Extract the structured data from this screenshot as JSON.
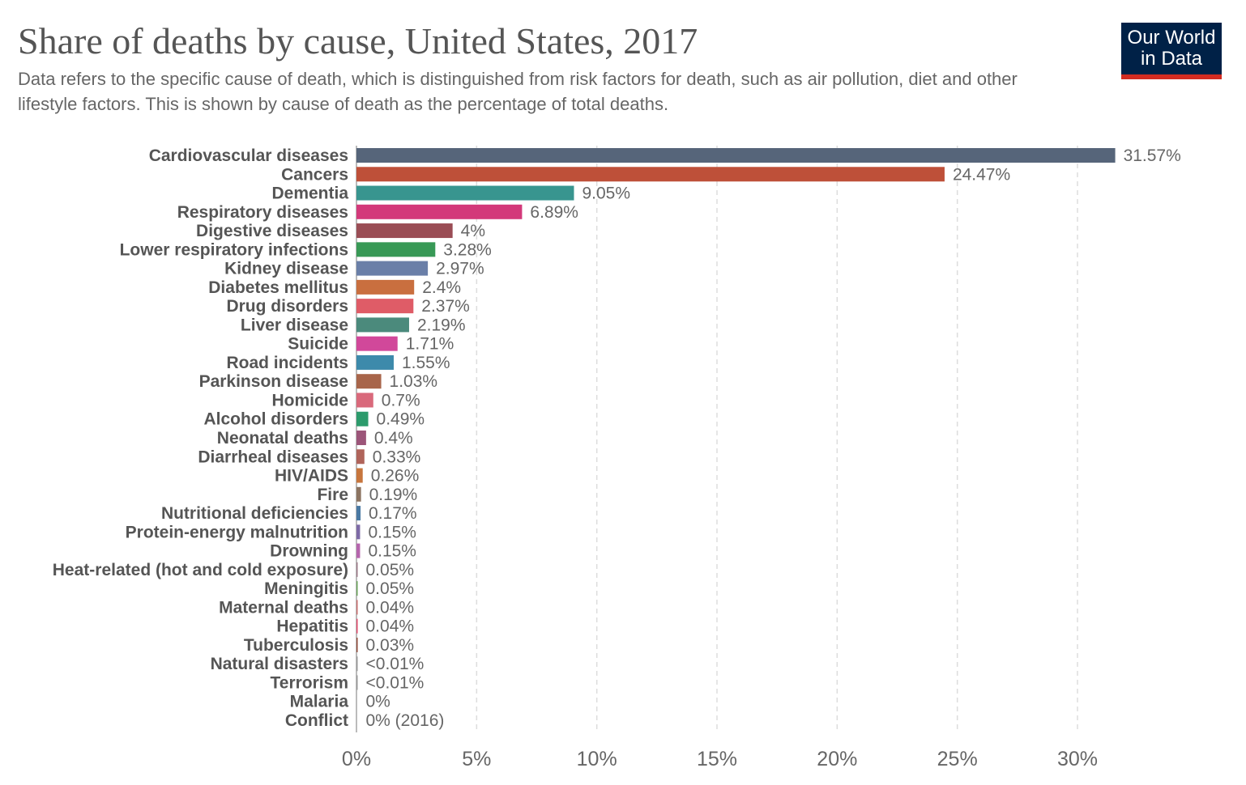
{
  "logo": {
    "text": "Our World in Data",
    "line1": "Our World",
    "line2": "in Data",
    "bg_color": "#002147",
    "accent_color": "#d42b21"
  },
  "chart_data": {
    "type": "bar",
    "orientation": "horizontal",
    "title": "Share of deaths by cause, United States, 2017",
    "subtitle": "Data refers to the specific cause of death, which is distinguished from risk factors for death, such as air pollution, diet and other lifestyle factors. This is shown by cause of death as the percentage of total deaths.",
    "xlim": [
      0,
      30
    ],
    "x_ticks": [
      "0%",
      "5%",
      "10%",
      "15%",
      "20%",
      "25%",
      "30%"
    ],
    "x_tick_values": [
      0,
      5,
      10,
      15,
      20,
      25,
      30
    ],
    "grid": "vertical dashed",
    "categories": [
      "Cardiovascular diseases",
      "Cancers",
      "Dementia",
      "Respiratory diseases",
      "Digestive diseases",
      "Lower respiratory infections",
      "Kidney disease",
      "Diabetes mellitus",
      "Drug disorders",
      "Liver disease",
      "Suicide",
      "Road incidents",
      "Parkinson disease",
      "Homicide",
      "Alcohol disorders",
      "Neonatal deaths",
      "Diarrheal diseases",
      "HIV/AIDS",
      "Fire",
      "Nutritional deficiencies",
      "Protein-energy malnutrition",
      "Drowning",
      "Heat-related (hot and cold exposure)",
      "Meningitis",
      "Maternal deaths",
      "Hepatitis",
      "Tuberculosis",
      "Natural disasters",
      "Terrorism",
      "Malaria",
      "Conflict"
    ],
    "values": [
      31.57,
      24.47,
      9.05,
      6.89,
      4,
      3.28,
      2.97,
      2.4,
      2.37,
      2.19,
      1.71,
      1.55,
      1.03,
      0.7,
      0.49,
      0.4,
      0.33,
      0.26,
      0.19,
      0.17,
      0.15,
      0.15,
      0.05,
      0.05,
      0.04,
      0.04,
      0.03,
      0.004,
      0.004,
      0,
      0
    ],
    "value_labels": [
      "31.57%",
      "24.47%",
      "9.05%",
      "6.89%",
      "4%",
      "3.28%",
      "2.97%",
      "2.4%",
      "2.37%",
      "2.19%",
      "1.71%",
      "1.55%",
      "1.03%",
      "0.7%",
      "0.49%",
      "0.4%",
      "0.33%",
      "0.26%",
      "0.19%",
      "0.17%",
      "0.15%",
      "0.15%",
      "0.05%",
      "0.05%",
      "0.04%",
      "0.04%",
      "0.03%",
      "<0.01%",
      "<0.01%",
      "0%",
      "0% (2016)"
    ],
    "colors": [
      "#56657a",
      "#be5039",
      "#38958f",
      "#d3397a",
      "#9a4d55",
      "#389956",
      "#6a7fa8",
      "#c96f3f",
      "#df5c67",
      "#4b8a7c",
      "#d1489a",
      "#3d8aab",
      "#a8654a",
      "#d9697b",
      "#2c9b6c",
      "#9c5579",
      "#b0645a",
      "#c7763d",
      "#8c7461",
      "#4a79a3",
      "#7d6aa6",
      "#b565ad",
      "#9c7a88",
      "#6aa35a",
      "#c86e6e",
      "#e04a6b",
      "#8f4a3a",
      "#999999",
      "#999999",
      "#999999",
      "#999999"
    ]
  }
}
